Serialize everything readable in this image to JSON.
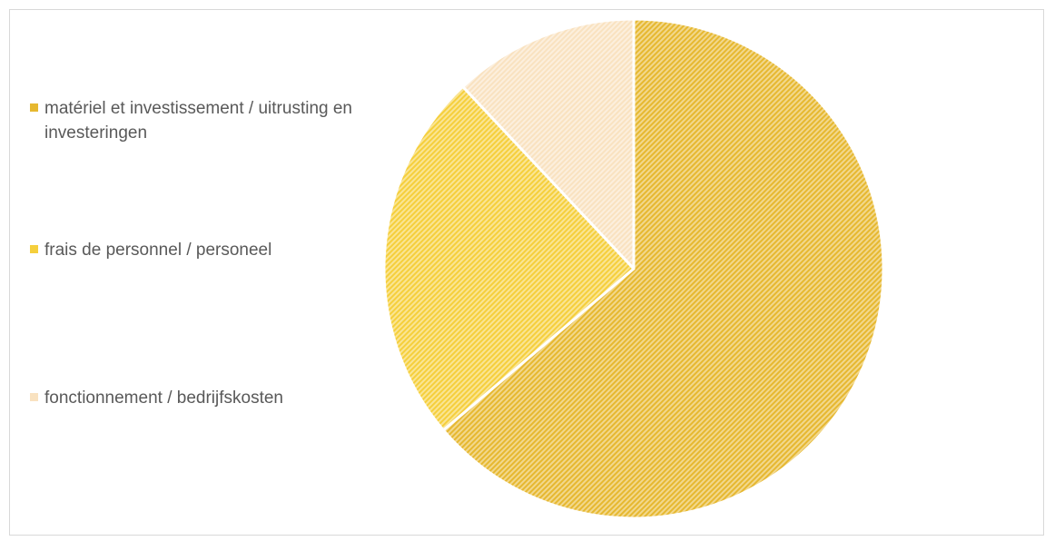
{
  "chart_data": {
    "type": "pie",
    "title": "",
    "categories": [
      "matériel et investissement / uitrusting en investeringen",
      "frais de personnel / personeel",
      "fonctionnement / bedrijfskosten"
    ],
    "values": [
      63.8,
      24.2,
      12.0
    ],
    "colors": [
      "#e6b830",
      "#f5cf3c",
      "#f9e2c0"
    ],
    "legend_position": "left",
    "start_angle": "12 o'clock, clockwise",
    "pattern": "diagonal hatch"
  }
}
